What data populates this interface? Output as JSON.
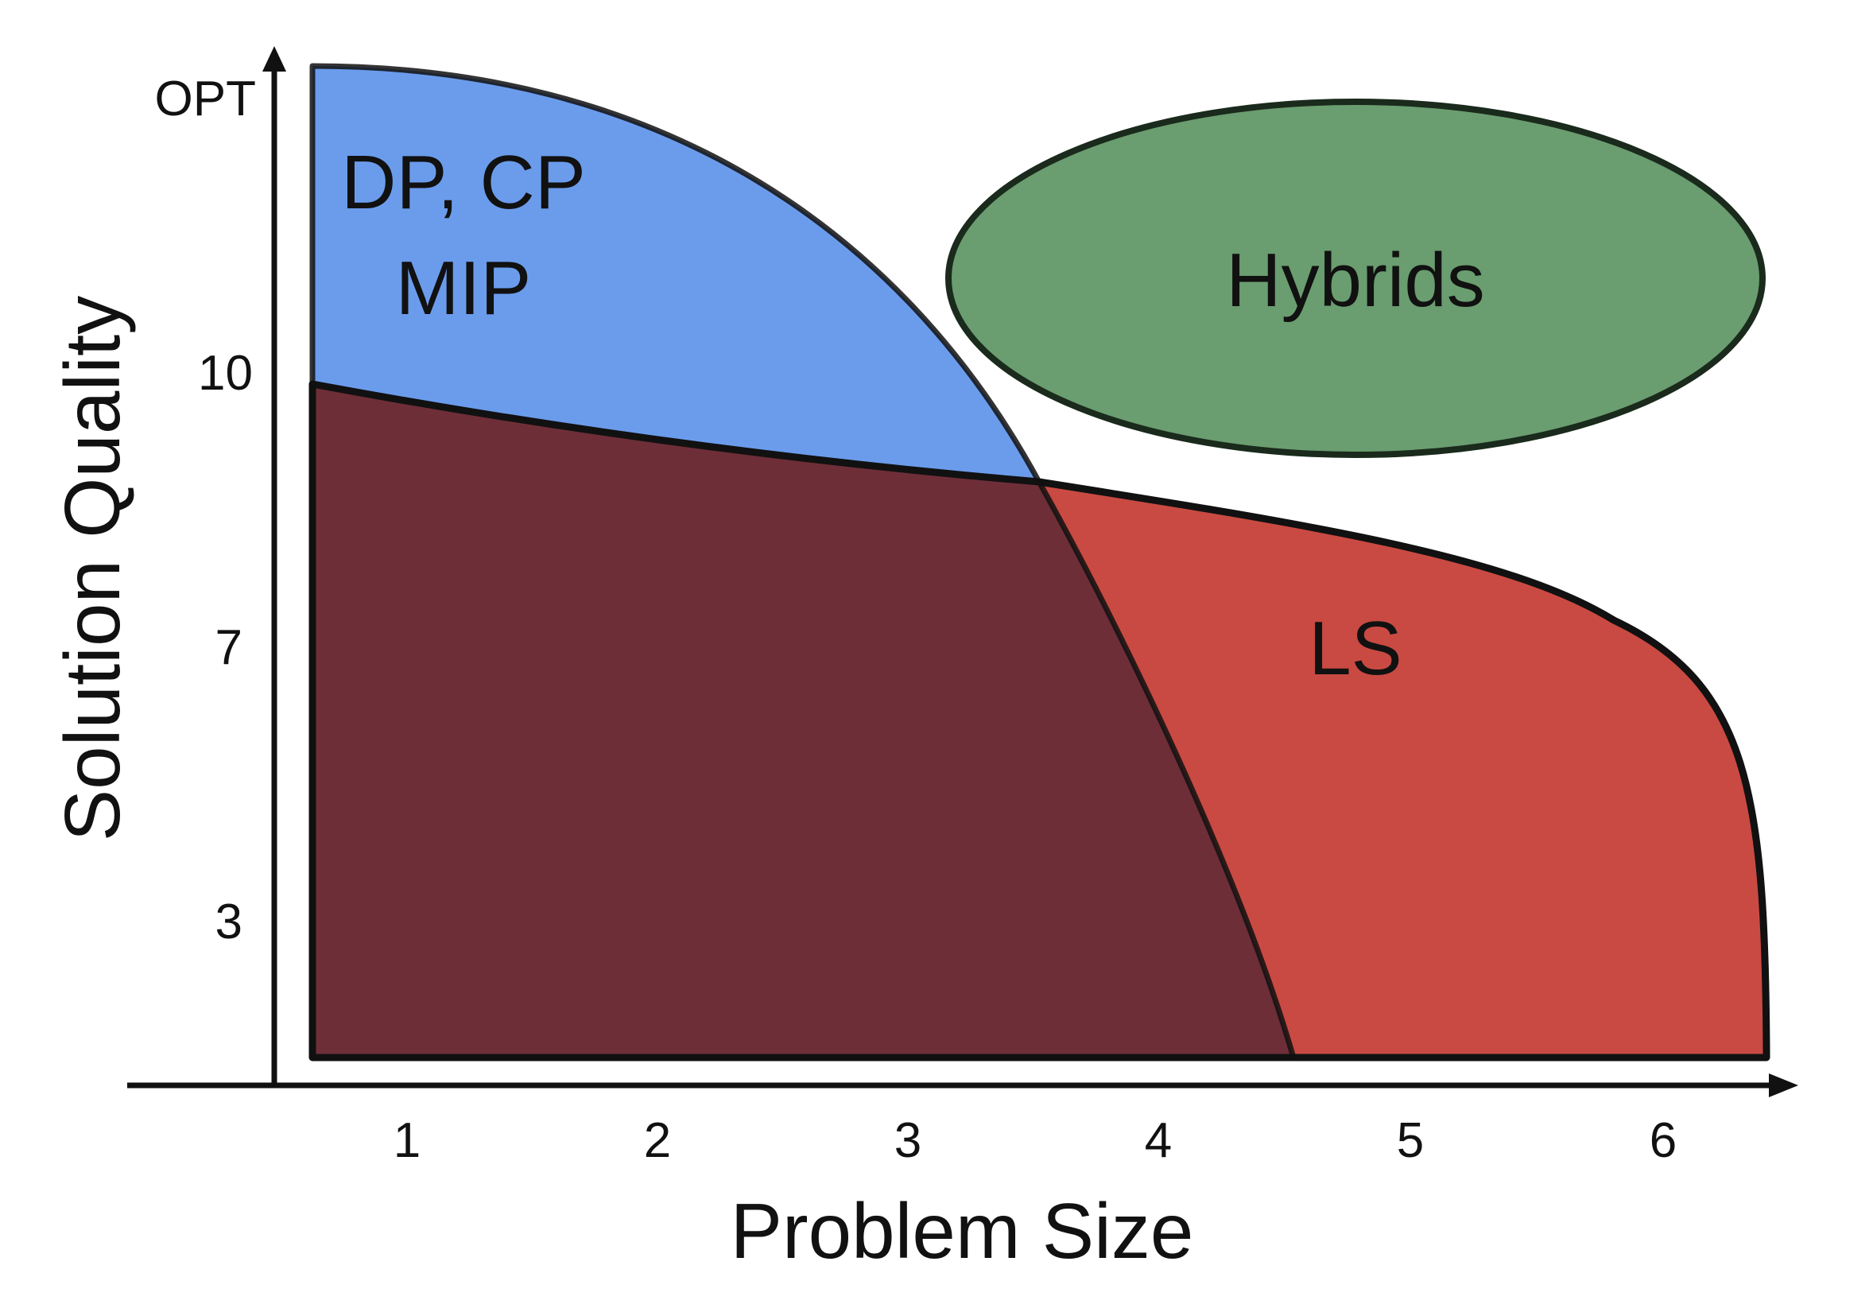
{
  "axes": {
    "x_label": "Problem Size",
    "y_label": "Solution Quality",
    "x_ticks": [
      "1",
      "2",
      "3",
      "4",
      "5",
      "6"
    ],
    "y_ticks": [
      "OPT",
      "10",
      "7",
      "3"
    ]
  },
  "regions": {
    "exact": {
      "label_line1": "DP, CP",
      "label_line2": "MIP",
      "color": "#6b9cec"
    },
    "hybrids": {
      "label": "Hybrids",
      "color": "#6a9d6f"
    },
    "local_search": {
      "label": "LS",
      "color": "#c94a42"
    },
    "overlap": {
      "color": "#6e2e38"
    }
  }
}
